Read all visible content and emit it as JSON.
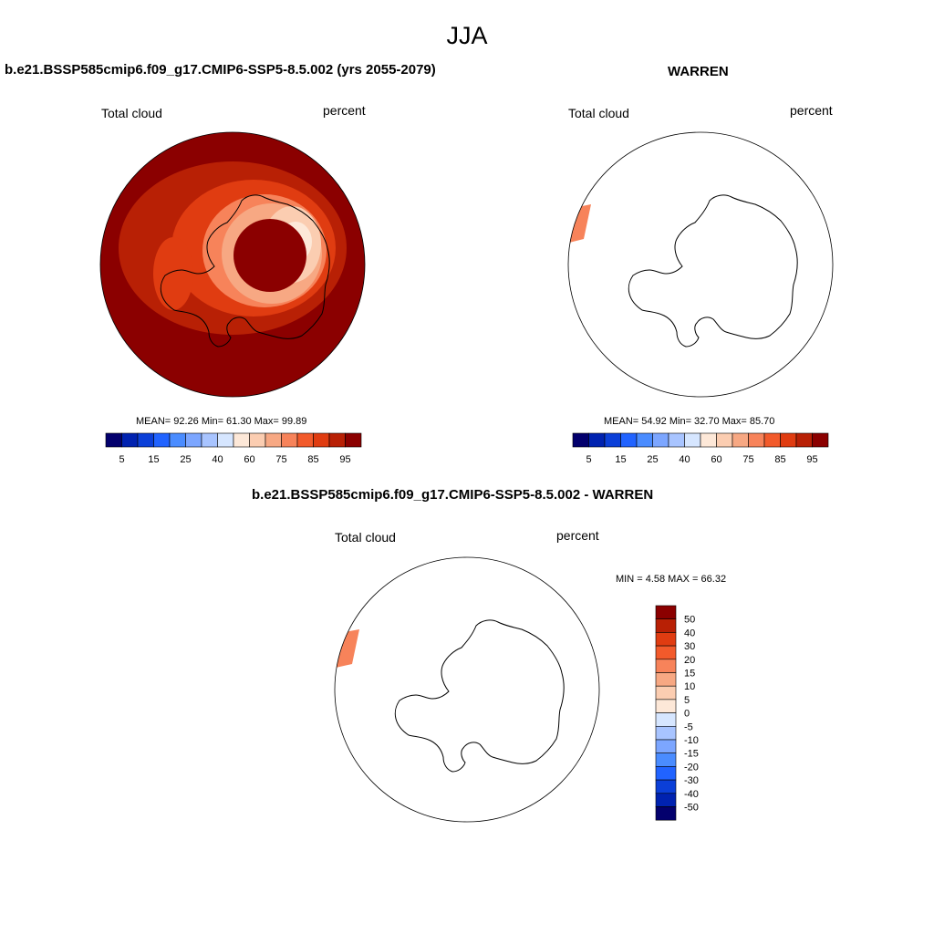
{
  "page": {
    "title": "JJA"
  },
  "panels": [
    {
      "case_title": "b.e21.BSSP585cmip6.f09_g17.CMIP6-SSP5-8.5.002 (yrs 2055-2079)",
      "variable_label": "Total cloud",
      "units_label": "percent",
      "stats": "MEAN=  92.26  Min=  61.30  Max=  99.89"
    },
    {
      "case_title": "WARREN",
      "variable_label": "Total cloud",
      "units_label": "percent",
      "stats": "MEAN=  54.92  Min=  32.70  Max=  85.70"
    },
    {
      "case_title": "b.e21.BSSP585cmip6.f09_g17.CMIP6-SSP5-8.5.002 - WARREN",
      "variable_label": "Total cloud",
      "units_label": "percent",
      "stats": "MIN =   4.58 MAX =  66.32"
    }
  ],
  "colorbars": {
    "abs": {
      "tick_labels": [
        "5",
        "15",
        "25",
        "40",
        "60",
        "75",
        "85",
        "95"
      ],
      "colors": [
        "#03006d",
        "#0022b0",
        "#0b3fd8",
        "#2163ff",
        "#4a8cff",
        "#7ca6ff",
        "#a8c4ff",
        "#d6e6ff",
        "#fde8d8",
        "#fbcdb1",
        "#f7a883",
        "#f7835a",
        "#f25a2b",
        "#e03c11",
        "#b82005",
        "#8b0000"
      ]
    },
    "diff": {
      "tick_labels": [
        "50",
        "40",
        "30",
        "20",
        "15",
        "10",
        "5",
        "0",
        "-5",
        "-10",
        "-15",
        "-20",
        "-30",
        "-40",
        "-50"
      ],
      "colors": [
        "#8b0000",
        "#b82005",
        "#e03c11",
        "#f25a2b",
        "#f7835a",
        "#f7a883",
        "#fbcdb1",
        "#fde8d8",
        "#d6e6ff",
        "#a8c4ff",
        "#7ca6ff",
        "#4a8cff",
        "#2163ff",
        "#0b3fd8",
        "#0022b0",
        "#03006d"
      ]
    }
  },
  "map_colors": {
    "dark_red": "#8b0000",
    "red": "#b82005",
    "red_orange": "#e03c11",
    "orange": "#f7835a",
    "salmon": "#f7a883",
    "peach": "#fbcdb1",
    "light": "#fde8d8"
  }
}
